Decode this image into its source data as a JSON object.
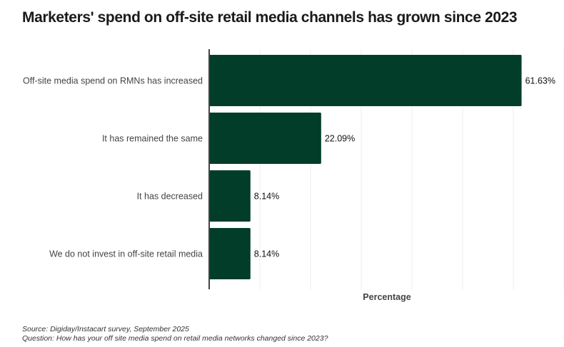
{
  "title": "Marketers' spend on off-site retail media channels has grown since 2023",
  "footer": {
    "source": "Source: Digiday/Instacart survey, September 2025",
    "question": "Question: How has your off site media spend on retail media networks changed since 2023?"
  },
  "colors": {
    "bar": "#023d2a",
    "grid": "#eeeeee",
    "axis": "#444444"
  },
  "chart_data": {
    "type": "bar",
    "orientation": "horizontal",
    "title": "Marketers' spend on off-site retail media channels has grown since 2023",
    "xlabel": "Percentage",
    "ylabel": "",
    "categories": [
      "Off-site media spend on RMNs has increased",
      "It has remained the same",
      "It has decreased",
      "We do not invest in off-site retail media"
    ],
    "values": [
      61.63,
      22.09,
      8.14,
      8.14
    ],
    "value_labels": [
      "61.63%",
      "22.09%",
      "8.14%",
      "8.14%"
    ],
    "xlim": [
      0,
      70
    ],
    "grid": true,
    "x_tick_labels_shown": false
  }
}
